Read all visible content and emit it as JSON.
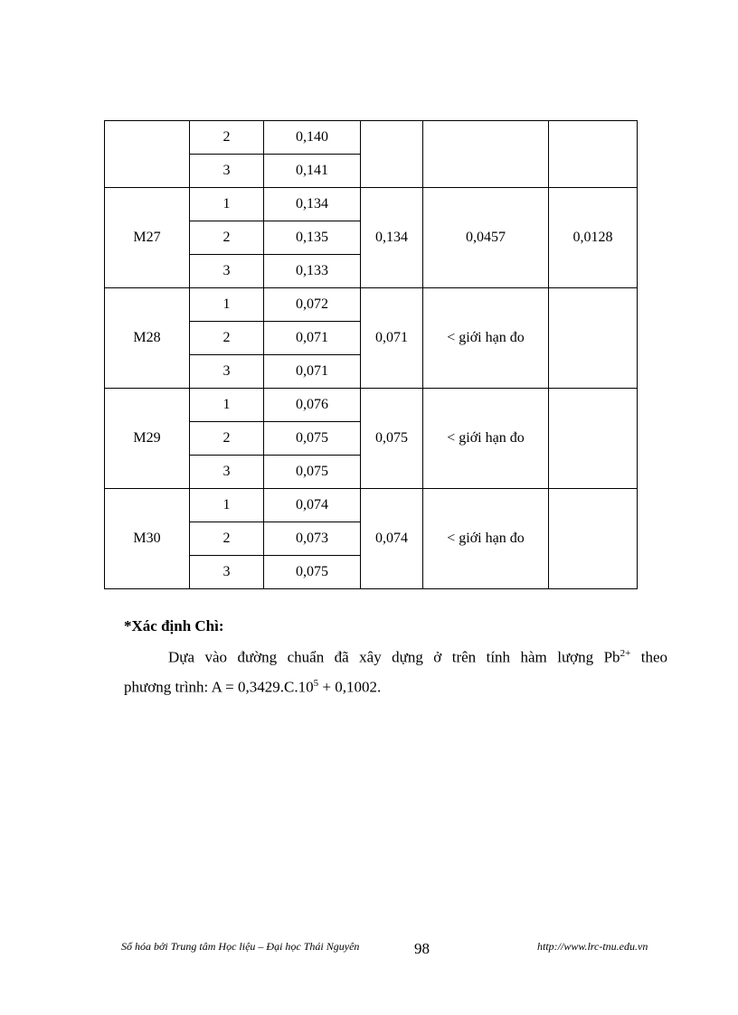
{
  "table": {
    "cont": {
      "r2": "2",
      "v2": "0,140",
      "r3": "3",
      "v3": "0,141"
    },
    "groups": [
      {
        "sample": "M27",
        "reps": [
          "1",
          "2",
          "3"
        ],
        "values": [
          "0,134",
          "0,135",
          "0,133"
        ],
        "mean": "0,134",
        "content": "0,0457",
        "last": "0,0128"
      },
      {
        "sample": "M28",
        "reps": [
          "1",
          "2",
          "3"
        ],
        "values": [
          "0,072",
          "0,071",
          "0,071"
        ],
        "mean": "0,071",
        "content": "< giới hạn đo",
        "last": ""
      },
      {
        "sample": "M29",
        "reps": [
          "1",
          "2",
          "3"
        ],
        "values": [
          "0,076",
          "0,075",
          "0,075"
        ],
        "mean": "0,075",
        "content": "< giới hạn đo",
        "last": ""
      },
      {
        "sample": "M30",
        "reps": [
          "1",
          "2",
          "3"
        ],
        "values": [
          "0,074",
          "0,073",
          "0,075"
        ],
        "mean": "0,074",
        "content": "< giới hạn đo",
        "last": ""
      }
    ]
  },
  "section": {
    "heading": "*Xác định Chì:",
    "para1_a": "Dựa vào đường chuẩn đã xây dựng ở trên tính hàm lượng Pb",
    "para1_sup": "2+",
    "para1_b": " theo",
    "para2_a": "phương trình: A = 0,3429.C.10",
    "para2_sup": "5",
    "para2_b": " + 0,1002."
  },
  "footer": {
    "left": "Số hóa bởi Trung tâm Học liệu – Đại học Thái Nguyên",
    "page": "98",
    "right": "http://www.lrc-tnu.edu.vn"
  }
}
